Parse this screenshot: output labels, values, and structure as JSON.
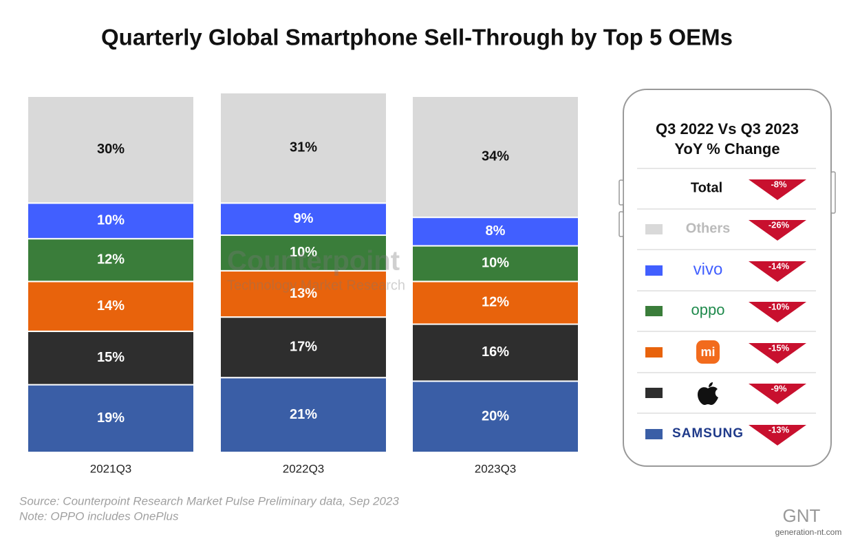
{
  "chart_data": {
    "type": "stacked_bar",
    "title": "Quarterly Global Smartphone Sell-Through by Top 5 OEMs",
    "categories": [
      "2021Q3",
      "2022Q3",
      "2023Q3"
    ],
    "ylim": [
      0,
      100
    ],
    "series": [
      {
        "name": "SAMSUNG",
        "color": "#3a5ea6",
        "values": [
          19,
          21,
          20
        ],
        "value_labels": [
          "19%",
          "21%",
          "20%"
        ],
        "yoy": -13,
        "yoy_label": "-13%"
      },
      {
        "color": "#2e2e2e",
        "values": [
          15,
          17,
          16
        ],
        "value_labels": [
          "15%",
          "17%",
          "16%"
        ],
        "yoy": -9,
        "yoy_label": "-9%"
      },
      {
        "name": "mi",
        "color": "#e8630c",
        "values": [
          14,
          13,
          12
        ],
        "value_labels": [
          "14%",
          "13%",
          "12%"
        ],
        "yoy": -15,
        "yoy_label": "-15%"
      },
      {
        "name": "oppo",
        "color": "#3a7d3a",
        "values": [
          12,
          10,
          10
        ],
        "value_labels": [
          "12%",
          "10%",
          "10%"
        ],
        "yoy": -10,
        "yoy_label": "-10%"
      },
      {
        "name": "vivo",
        "color": "#415fff",
        "values": [
          10,
          9,
          8
        ],
        "value_labels": [
          "10%",
          "9%",
          "8%"
        ],
        "yoy": -14,
        "yoy_label": "-14%"
      },
      {
        "name": "Others",
        "color": "#d9d9d9",
        "values": [
          30,
          31,
          34
        ],
        "value_labels": [
          "30%",
          "31%",
          "34%"
        ],
        "yoy": -26,
        "yoy_label": "-26%"
      }
    ],
    "yoy_title": [
      "Q3 2022 Vs Q3 2023",
      "YoY % Change"
    ],
    "yoy_total_name": "Total",
    "yoy_total": -8,
    "yoy_total_label": "-8%",
    "source": "Source: Counterpoint Research Market Pulse Preliminary data, Sep 2023",
    "note": "Note: OPPO includes OnePlus",
    "watermark": [
      "Counterpoint",
      "Technology Market Research"
    ],
    "credit": [
      "GNT",
      "generation-nt.com"
    ]
  }
}
